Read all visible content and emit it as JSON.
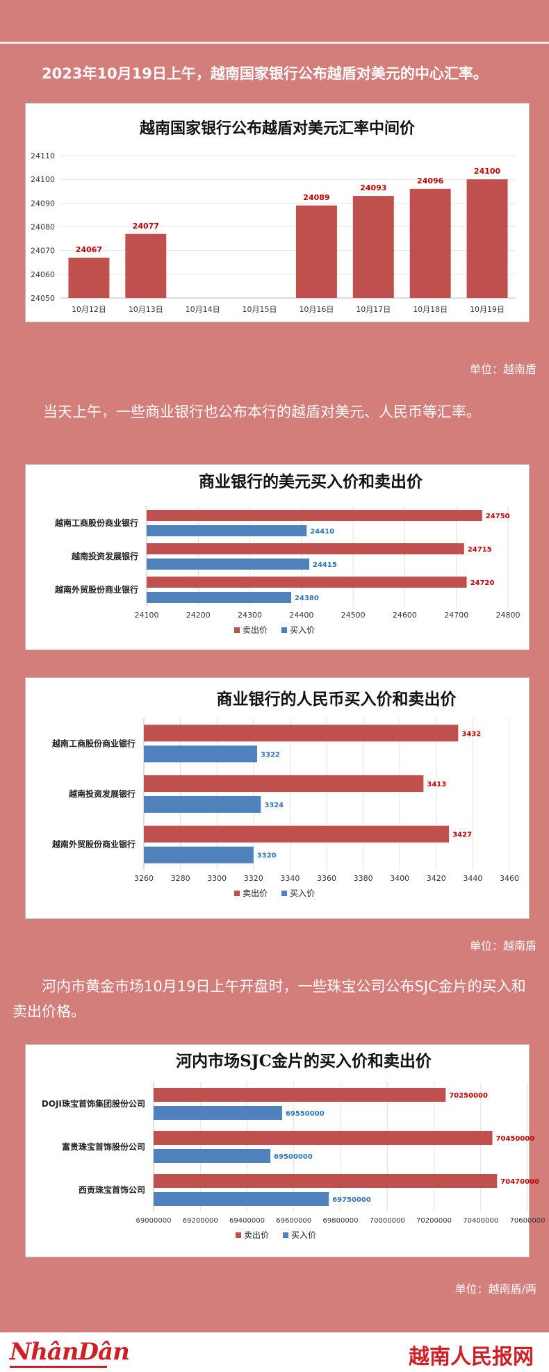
{
  "intro_text": "2023年10月19日上午，越南国家银行公布越盾对美元的中心汇率。",
  "para2_text": "当天上午，一些商业银行也公布本行的越盾对美元、人民币等汇率。",
  "para3_text": "河内市黄金市场10月19日上午开盘时，一些珠宝公司公布SJC金片的买入和卖出价格。",
  "unit_vnd": "单位：越南盾",
  "unit_vnd_2": "单位：越南盾",
  "unit_vnd_tael": "单位：越南盾/两",
  "footer": {
    "left_brand": "NhânDân",
    "right_brand": "越南人民报网"
  },
  "colors": {
    "background": "#d47e7b",
    "sell": "#c0504d",
    "buy": "#4f81bd",
    "sell_label": "#c00000",
    "buy_label": "#2e75b6"
  },
  "chart_data": [
    {
      "type": "bar",
      "title": "越南国家银行公布越盾对美元汇率中间价",
      "categories": [
        "10月12日",
        "10月13日",
        "10月14日",
        "10月15日",
        "10月16日",
        "10月17日",
        "10月18日",
        "10月19日"
      ],
      "values": [
        24067,
        24077,
        null,
        null,
        24089,
        24093,
        24096,
        24100
      ],
      "data_labels": [
        "24067",
        "24077",
        "",
        "",
        "24089",
        "24093",
        "24096",
        "24100"
      ],
      "ylim": [
        24050,
        24110
      ],
      "yticks": [
        "24050",
        "24060",
        "24070",
        "24080",
        "24090",
        "24100",
        "24110"
      ],
      "grid": true
    },
    {
      "type": "bar",
      "orientation": "horizontal",
      "title": "商业银行的美元买入价和卖出价",
      "categories": [
        "越南工商股份商业银行",
        "越南投资发展银行",
        "越南外贸股份商业银行"
      ],
      "series": [
        {
          "name": "卖出价",
          "values": [
            24750,
            24715,
            24720
          ],
          "labels": [
            "24750",
            "24715",
            "24720"
          ]
        },
        {
          "name": "买入价",
          "values": [
            24410,
            24415,
            24380
          ],
          "labels": [
            "24410",
            "24415",
            "24380"
          ]
        }
      ],
      "xlim": [
        24100,
        24800
      ],
      "xticks": [
        "24100",
        "24200",
        "24300",
        "24400",
        "24500",
        "24600",
        "24700",
        "24800"
      ],
      "legend": "bottom"
    },
    {
      "type": "bar",
      "orientation": "horizontal",
      "title": "商业银行的人民币买入价和卖出价",
      "categories": [
        "越南工商股份商业银行",
        "越南投资发展银行",
        "越南外贸股份商业银行"
      ],
      "series": [
        {
          "name": "卖出价",
          "values": [
            3432,
            3413,
            3427
          ],
          "labels": [
            "3432",
            "3413",
            "3427"
          ]
        },
        {
          "name": "买入价",
          "values": [
            3322,
            3324,
            3320
          ],
          "labels": [
            "3322",
            "3324",
            "3320"
          ]
        }
      ],
      "xlim": [
        3260,
        3460
      ],
      "xticks": [
        "3260",
        "3280",
        "3300",
        "3320",
        "3340",
        "3360",
        "3380",
        "3400",
        "3420",
        "3440",
        "3460"
      ],
      "legend": "bottom"
    },
    {
      "type": "bar",
      "orientation": "horizontal",
      "title": "河内市场SJC金片的买入价和卖出价",
      "categories": [
        "DOJI珠宝首饰集团股份公司",
        "富贵珠宝首饰股份公司",
        "西贡珠宝首饰公司"
      ],
      "series": [
        {
          "name": "卖出价",
          "values": [
            70250000,
            70450000,
            70470000
          ],
          "labels": [
            "70250000",
            "70450000",
            "70470000"
          ]
        },
        {
          "name": "买入价",
          "values": [
            69550000,
            69500000,
            69750000
          ],
          "labels": [
            "69550000",
            "69500000",
            "69750000"
          ]
        }
      ],
      "xlim": [
        69000000,
        70600000
      ],
      "xticks": [
        "69000000",
        "69200000",
        "69400000",
        "69600000",
        "69800000",
        "70000000",
        "70200000",
        "70400000",
        "70600000"
      ],
      "legend": "bottom"
    }
  ]
}
